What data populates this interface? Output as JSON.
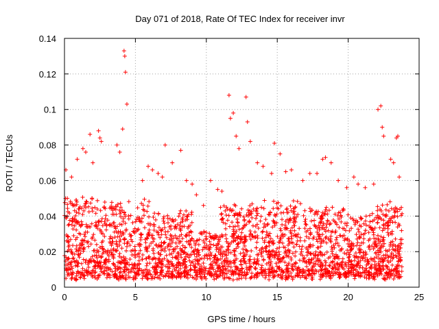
{
  "chart_data": {
    "type": "scatter",
    "title": "Day 071 of 2018, Rate Of TEC Index for receiver invr",
    "xlabel": "GPS time / hours",
    "ylabel": "ROTI / TECUs",
    "xlim": [
      0,
      25
    ],
    "ylim": [
      0,
      0.14
    ],
    "xticks": [
      0,
      5,
      10,
      15,
      20,
      25
    ],
    "yticks": [
      0,
      0.02,
      0.04,
      0.06,
      0.08,
      0.1,
      0.12,
      0.14
    ],
    "xtick_labels": [
      "0",
      "5",
      "10",
      "15",
      "20",
      "25"
    ],
    "ytick_labels": [
      "0",
      "0.02",
      "0.04",
      "0.06",
      "0.08",
      "0.1",
      "0.12",
      "0.14"
    ],
    "grid": true,
    "legend": "none",
    "marker": "plus",
    "color": "#ff0000",
    "series": [
      {
        "name": "ROTI",
        "note": "dense cloud of points, mostly 0.005-0.05 TECU/min over 0-23.8 h; listed points are the visible peaks/outliers",
        "x": [
          0.1,
          0.2,
          0.5,
          0.9,
          1.3,
          1.5,
          1.8,
          2.0,
          2.4,
          2.5,
          2.6,
          3.7,
          3.9,
          4.1,
          4.2,
          4.25,
          4.3,
          4.4,
          5.5,
          5.9,
          6.2,
          6.6,
          6.9,
          7.1,
          7.6,
          8.2,
          8.6,
          9.0,
          9.3,
          9.8,
          10.3,
          10.8,
          11.1,
          11.6,
          11.7,
          11.9,
          12.1,
          12.3,
          12.8,
          12.9,
          13.1,
          13.6,
          14.0,
          14.6,
          14.8,
          15.2,
          15.6,
          16.0,
          16.8,
          17.3,
          17.8,
          18.2,
          18.4,
          18.8,
          19.3,
          19.9,
          20.4,
          20.7,
          21.2,
          21.8,
          22.1,
          22.3,
          22.4,
          22.5,
          23.0,
          23.2,
          23.4,
          23.5,
          23.6
        ],
        "y": [
          0.066,
          0.05,
          0.062,
          0.072,
          0.078,
          0.076,
          0.086,
          0.07,
          0.088,
          0.084,
          0.082,
          0.08,
          0.076,
          0.089,
          0.133,
          0.13,
          0.121,
          0.103,
          0.06,
          0.068,
          0.066,
          0.064,
          0.062,
          0.08,
          0.07,
          0.077,
          0.06,
          0.058,
          0.052,
          0.046,
          0.06,
          0.055,
          0.054,
          0.108,
          0.095,
          0.098,
          0.085,
          0.078,
          0.107,
          0.093,
          0.082,
          0.07,
          0.068,
          0.064,
          0.081,
          0.075,
          0.065,
          0.066,
          0.06,
          0.064,
          0.064,
          0.072,
          0.073,
          0.07,
          0.06,
          0.056,
          0.062,
          0.058,
          0.056,
          0.058,
          0.1,
          0.102,
          0.09,
          0.085,
          0.072,
          0.07,
          0.084,
          0.085,
          0.062
        ]
      }
    ]
  }
}
